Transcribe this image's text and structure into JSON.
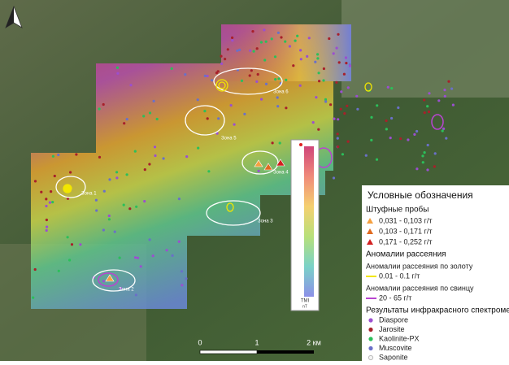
{
  "map": {
    "zones": [
      "Зона 1",
      "Зона 2",
      "Зона 3",
      "Зона 4",
      "Зона 5",
      "Зона 6"
    ],
    "colorbar": {
      "title": "TMI",
      "unit": "nT"
    },
    "scale": {
      "labels": [
        "0",
        "1",
        "2 км"
      ]
    },
    "legend": {
      "title": "Условные обозначения",
      "samples": {
        "title": "Штуфные пробы",
        "items": [
          "0,031 - 0,103  г/т",
          "0,103 - 0,171  г/т",
          "0,171 - 0,252  г/т"
        ]
      },
      "anomalies": {
        "title": "Аномалии рассеяния",
        "gold": {
          "title": "Аномалии рассеяния по золоту",
          "item": "0.01 - 0.1  г/т"
        },
        "lead": {
          "title": "Аномалии рассеяния по свинцу",
          "item": "20 - 65  г/т"
        }
      },
      "spectrometer": {
        "title": "Результаты инфракрасного спектрометра",
        "items": [
          "Diaspore",
          "Jarosite",
          "Kaolinite-PX",
          "Muscovite",
          "Saponite"
        ]
      }
    }
  }
}
